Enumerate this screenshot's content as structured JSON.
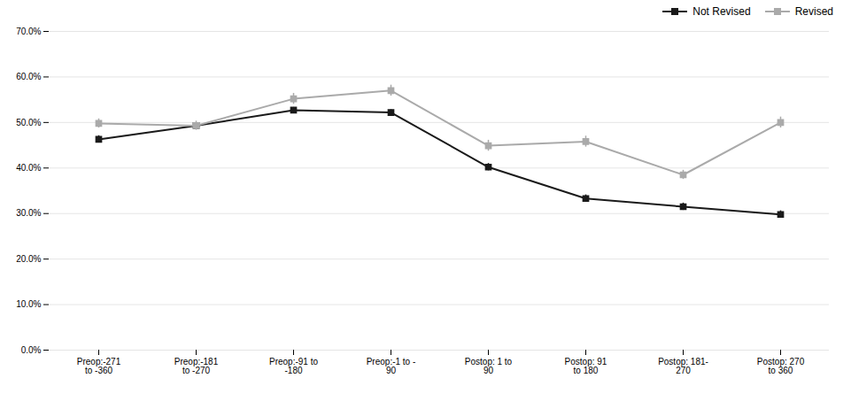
{
  "chart_data": {
    "type": "line",
    "categories": [
      "Preop:-271\nto -360",
      "Preop:-181\nto -270",
      "Preop:-91 to\n-180",
      "Preop:-1 to -\n90",
      "Postop: 1 to\n90",
      "Postop: 91\nto 180",
      "Postop: 181-\n270",
      "Postop: 270\nto 360"
    ],
    "series": [
      {
        "name": "Not Revised",
        "color": "#1a1a1a",
        "marker": "square",
        "line_style": "solid",
        "values": [
          0.463,
          0.493,
          0.527,
          0.522,
          0.402,
          0.333,
          0.315,
          0.298
        ],
        "errors": [
          0.008,
          0.006,
          0.006,
          0.006,
          0.008,
          0.008,
          0.008,
          0.008
        ]
      },
      {
        "name": "Revised",
        "color": "#aaaaaa",
        "marker": "square",
        "line_style": "solid",
        "values": [
          0.498,
          0.493,
          0.552,
          0.57,
          0.449,
          0.458,
          0.385,
          0.5
        ],
        "errors": [
          0.01,
          0.01,
          0.012,
          0.012,
          0.012,
          0.012,
          0.01,
          0.012
        ]
      }
    ],
    "ylim": [
      0.0,
      0.7
    ],
    "yticks": [
      {
        "value": 0.0,
        "label": "0.0%"
      },
      {
        "value": 0.1,
        "label": "10.0%"
      },
      {
        "value": 0.2,
        "label": "20.0%"
      },
      {
        "value": 0.3,
        "label": "30.0%"
      },
      {
        "value": 0.4,
        "label": "40.0%"
      },
      {
        "value": 0.5,
        "label": "50.0%"
      },
      {
        "value": 0.6,
        "label": "60.0%"
      },
      {
        "value": 0.7,
        "label": "70.0%"
      }
    ],
    "grid": true,
    "legend": "upper right"
  }
}
